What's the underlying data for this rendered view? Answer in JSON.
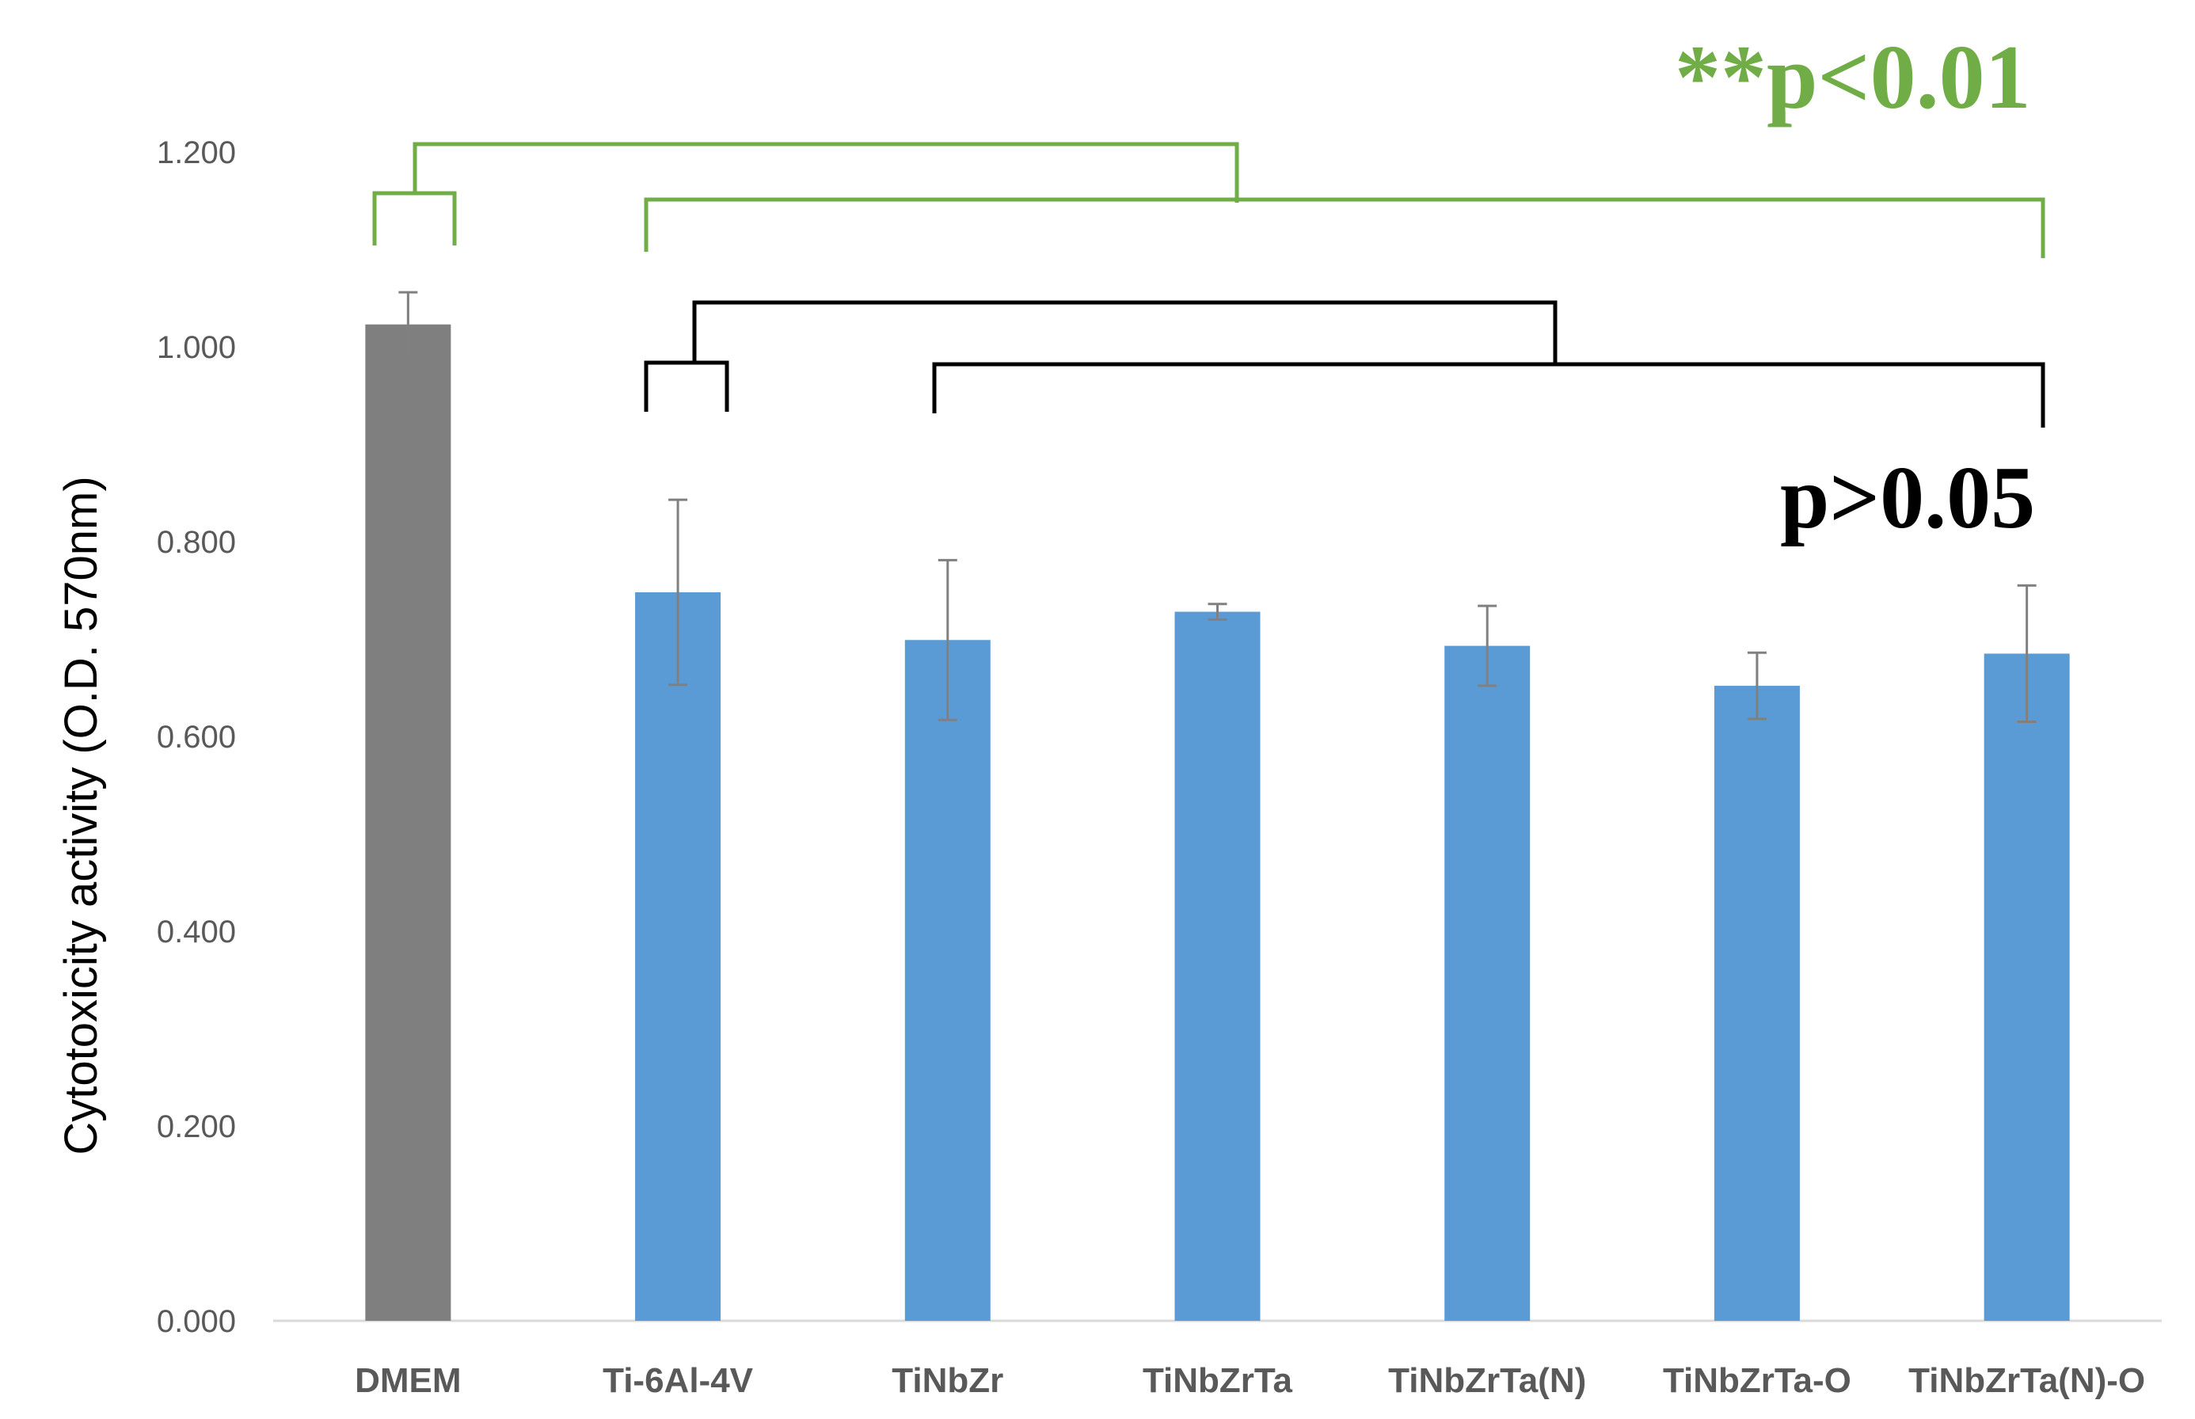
{
  "chart_data": {
    "type": "bar",
    "title": "",
    "xlabel": "",
    "ylabel": "Cytotoxicity activity (O.D. 570nm)",
    "ylim": [
      0,
      1.2
    ],
    "yticks": [
      "0.000",
      "0.200",
      "0.400",
      "0.600",
      "0.800",
      "1.000",
      "1.200"
    ],
    "categories": [
      "DMEM",
      "Ti-6Al-4V",
      "TiNbZr",
      "TiNbZrTa",
      "TiNbZrTa(N)",
      "TiNbZrTa-O",
      "TiNbZrTa(N)-O"
    ],
    "values": [
      1.023,
      0.748,
      0.699,
      0.728,
      0.693,
      0.652,
      0.685
    ],
    "errors": [
      0.033,
      0.095,
      0.082,
      0.008,
      0.041,
      0.034,
      0.07
    ],
    "bar_colors": [
      "#7f7f7f",
      "#5b9bd5",
      "#5b9bd5",
      "#5b9bd5",
      "#5b9bd5",
      "#5b9bd5",
      "#5b9bd5"
    ],
    "grid": false,
    "annotations": {
      "significant_label": "**p<0.01",
      "significant_color": "#70ad47",
      "nonsignificant_label": "p>0.05",
      "nonsignificant_color": "#000000"
    }
  }
}
